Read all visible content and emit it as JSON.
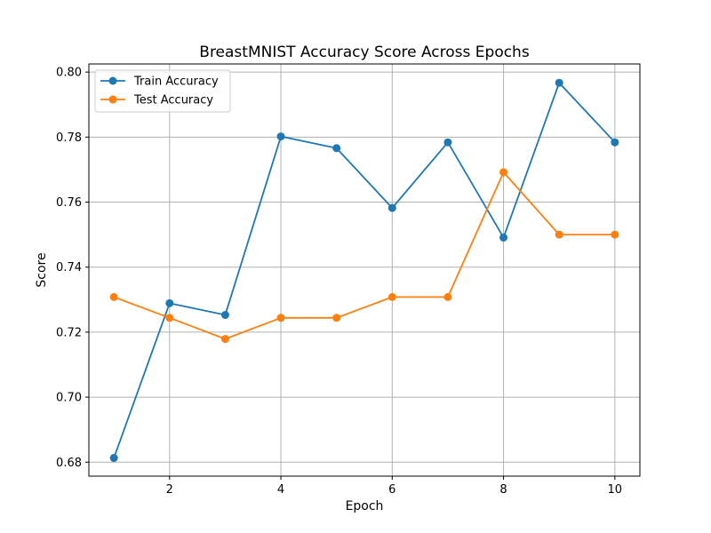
{
  "chart_data": {
    "type": "line",
    "title": "BreastMNIST Accuracy Score Across Epochs",
    "xlabel": "Epoch",
    "ylabel": "Score",
    "x": [
      1,
      2,
      3,
      4,
      5,
      6,
      7,
      8,
      9,
      10
    ],
    "xlim": [
      0.55,
      10.45
    ],
    "ylim": [
      0.6757,
      0.8025
    ],
    "xticks": [
      2,
      4,
      6,
      8,
      10
    ],
    "yticks": [
      0.68,
      0.7,
      0.72,
      0.74,
      0.76,
      0.78,
      0.8
    ],
    "ytick_labels": [
      "0.68",
      "0.70",
      "0.72",
      "0.74",
      "0.76",
      "0.78",
      "0.80"
    ],
    "grid": true,
    "legend_position": "upper-left",
    "series": [
      {
        "name": "Train Accuracy",
        "color": "#1f77b4",
        "marker": "circle",
        "values": [
          0.6813,
          0.7289,
          0.7253,
          0.7802,
          0.7766,
          0.7582,
          0.7784,
          0.7491,
          0.7967,
          0.7784
        ]
      },
      {
        "name": "Test Accuracy",
        "color": "#ff7f0e",
        "marker": "circle",
        "values": [
          0.7308,
          0.7244,
          0.7179,
          0.7244,
          0.7244,
          0.7308,
          0.7308,
          0.7692,
          0.75,
          0.75
        ]
      }
    ]
  }
}
